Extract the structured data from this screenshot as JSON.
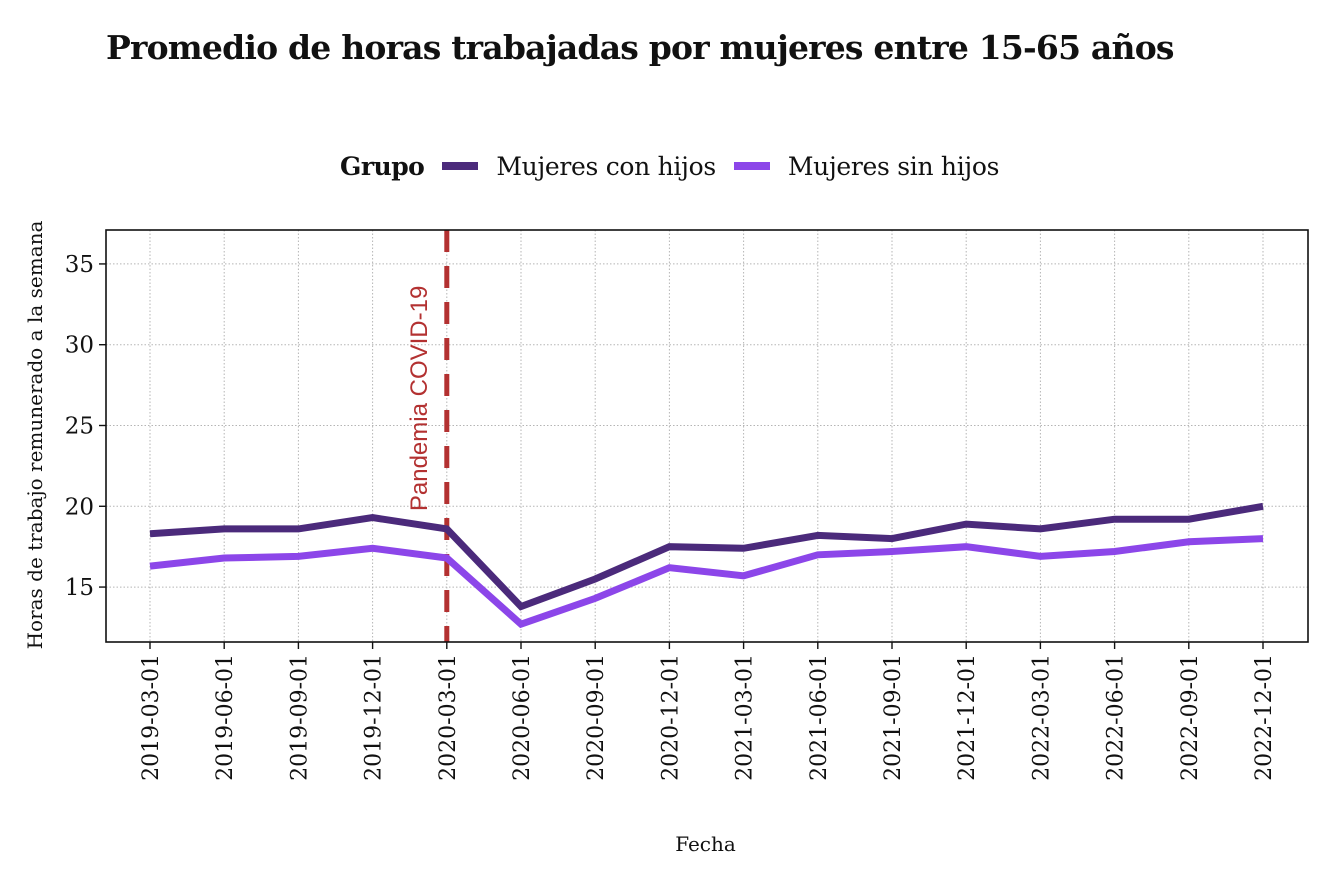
{
  "chart_data": {
    "type": "line",
    "title": "Promedio de horas trabajadas por mujeres entre 15-65 años",
    "xlabel": "Fecha",
    "ylabel": "Horas de trabajo remunerado a la semana",
    "legend": {
      "title": "Grupo",
      "placement": "top-center"
    },
    "x": [
      "2019-03-01",
      "2019-06-01",
      "2019-09-01",
      "2019-12-01",
      "2020-03-01",
      "2020-06-01",
      "2020-09-01",
      "2020-12-01",
      "2021-03-01",
      "2021-06-01",
      "2021-09-01",
      "2021-12-01",
      "2022-03-01",
      "2022-06-01",
      "2022-09-01",
      "2022-12-01"
    ],
    "series": [
      {
        "name": "Mujeres con hijos",
        "color": "#4b2a7b",
        "values": [
          18.3,
          18.6,
          18.6,
          19.3,
          18.6,
          13.8,
          15.5,
          17.5,
          17.4,
          18.2,
          18.0,
          18.9,
          18.6,
          19.2,
          19.2,
          20.0
        ]
      },
      {
        "name": "Mujeres sin hijos",
        "color": "#8c46e9",
        "values": [
          16.3,
          16.8,
          16.9,
          17.4,
          16.8,
          12.7,
          14.3,
          16.2,
          15.7,
          17.0,
          17.2,
          17.5,
          16.9,
          17.2,
          17.8,
          18.0
        ]
      }
    ],
    "yticks": [
      15,
      20,
      25,
      30,
      35
    ],
    "ylim": [
      11.6,
      37.1
    ],
    "grid": true,
    "annotations": [
      {
        "type": "vline",
        "x": "2020-03-01",
        "label": "Pandemia COVID-19",
        "color": "#b33131",
        "style": "dashed"
      }
    ]
  }
}
